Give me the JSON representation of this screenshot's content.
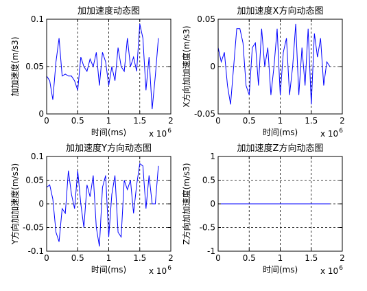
{
  "chart_data": [
    {
      "type": "line",
      "title": "加加速度动态图",
      "xlabel": "时间(ms)",
      "ylabel": "加加速度(m/s3)",
      "xlim": [
        0,
        2
      ],
      "ylim": [
        0,
        0.1
      ],
      "xticks": [
        "0",
        "0.5",
        "1",
        "1.5",
        "2"
      ],
      "yticks": [
        "0",
        "0.05",
        "0.1"
      ],
      "xscale_note": "x 10",
      "xscale_exp": "6",
      "grid": true,
      "color": "#0000ff",
      "series": [
        {
          "x": [
            0,
            0.05,
            0.1,
            0.15,
            0.2,
            0.25,
            0.3,
            0.35,
            0.4,
            0.45,
            0.5,
            0.55,
            0.6,
            0.65,
            0.7,
            0.75,
            0.8,
            0.85,
            0.9,
            0.95,
            1.0,
            1.05,
            1.1,
            1.15,
            1.2,
            1.25,
            1.3,
            1.35,
            1.4,
            1.45,
            1.5,
            1.55,
            1.6,
            1.65,
            1.7,
            1.75,
            1.8
          ],
          "y": [
            0.04,
            0.035,
            0.015,
            0.055,
            0.08,
            0.04,
            0.042,
            0.04,
            0.04,
            0.035,
            0.025,
            0.06,
            0.05,
            0.045,
            0.058,
            0.05,
            0.065,
            0.03,
            0.065,
            0.055,
            0.03,
            0.05,
            0.035,
            0.07,
            0.05,
            0.045,
            0.08,
            0.05,
            0.06,
            0.045,
            0.095,
            0.08,
            0.025,
            0.06,
            0.005,
            0.04,
            0.08
          ]
        }
      ]
    },
    {
      "type": "line",
      "title": "加加速度X方向动态图",
      "xlabel": "时间(ms)",
      "ylabel": "X方向加加速度(m/s3)",
      "xlim": [
        0,
        2
      ],
      "ylim": [
        -0.05,
        0.05
      ],
      "xticks": [
        "0",
        "0.5",
        "1",
        "1.5",
        "2"
      ],
      "yticks": [
        "-0.05",
        "0",
        "0.05"
      ],
      "xscale_note": "x 10",
      "xscale_exp": "6",
      "grid": true,
      "color": "#0000ff",
      "series": [
        {
          "x": [
            0,
            0.05,
            0.1,
            0.15,
            0.2,
            0.25,
            0.3,
            0.35,
            0.4,
            0.45,
            0.5,
            0.55,
            0.6,
            0.65,
            0.7,
            0.75,
            0.8,
            0.85,
            0.9,
            0.95,
            1.0,
            1.05,
            1.1,
            1.15,
            1.2,
            1.25,
            1.3,
            1.35,
            1.4,
            1.45,
            1.5,
            1.55,
            1.6,
            1.65,
            1.7,
            1.75,
            1.8
          ],
          "y": [
            0.02,
            0.005,
            0.015,
            -0.02,
            -0.04,
            0.0,
            0.04,
            0.04,
            0.025,
            -0.02,
            -0.03,
            0.02,
            0.025,
            -0.02,
            0.04,
            0.0,
            0.02,
            -0.03,
            0.0,
            0.04,
            -0.03,
            0.015,
            0.03,
            -0.03,
            0.0,
            0.045,
            -0.03,
            0.02,
            -0.02,
            0.04,
            -0.04,
            0.035,
            0.01,
            0.03,
            -0.02,
            0.005,
            0.0
          ]
        }
      ]
    },
    {
      "type": "line",
      "title": "加加速度Y方向动态图",
      "xlabel": "时间(ms)",
      "ylabel": "Y方向加加速度(m/s3)",
      "xlim": [
        0,
        2
      ],
      "ylim": [
        -0.1,
        0.1
      ],
      "xticks": [
        "0",
        "0.5",
        "1",
        "1.5",
        "2"
      ],
      "yticks": [
        "-0.1",
        "-0.05",
        "0",
        "0.05",
        "0.1"
      ],
      "xscale_note": "x 10",
      "xscale_exp": "6",
      "grid": true,
      "color": "#0000ff",
      "series": [
        {
          "x": [
            0,
            0.05,
            0.1,
            0.15,
            0.2,
            0.25,
            0.3,
            0.35,
            0.4,
            0.45,
            0.5,
            0.55,
            0.6,
            0.65,
            0.7,
            0.75,
            0.8,
            0.85,
            0.9,
            0.95,
            1.0,
            1.05,
            1.1,
            1.15,
            1.2,
            1.25,
            1.3,
            1.35,
            1.4,
            1.45,
            1.5,
            1.55,
            1.6,
            1.65,
            1.7,
            1.75,
            1.8
          ],
          "y": [
            0.035,
            0.04,
            0.01,
            -0.06,
            -0.08,
            -0.01,
            -0.02,
            0.07,
            0.02,
            -0.01,
            0.07,
            0.0,
            -0.05,
            0.04,
            0.015,
            0.06,
            -0.05,
            -0.09,
            0.035,
            0.06,
            -0.07,
            0.02,
            0.06,
            -0.06,
            -0.07,
            0.05,
            0.03,
            0.05,
            -0.02,
            0.04,
            0.085,
            0.08,
            -0.01,
            0.06,
            0.0,
            0.0,
            0.08
          ]
        }
      ]
    },
    {
      "type": "line",
      "title": "加加速度Z方向动态图",
      "xlabel": "时间(ms)",
      "ylabel": "Z方向加加速度(m/s3)",
      "xlim": [
        0,
        2
      ],
      "ylim": [
        -1,
        1
      ],
      "xticks": [
        "0",
        "0.5",
        "1",
        "1.5",
        "2"
      ],
      "yticks": [
        "-1",
        "-0.5",
        "0",
        "0.5",
        "1"
      ],
      "xscale_note": "x 10",
      "xscale_exp": "6",
      "grid": true,
      "color": "#0000ff",
      "series": [
        {
          "x": [
            0,
            1.8
          ],
          "y": [
            0,
            0
          ]
        }
      ]
    }
  ]
}
